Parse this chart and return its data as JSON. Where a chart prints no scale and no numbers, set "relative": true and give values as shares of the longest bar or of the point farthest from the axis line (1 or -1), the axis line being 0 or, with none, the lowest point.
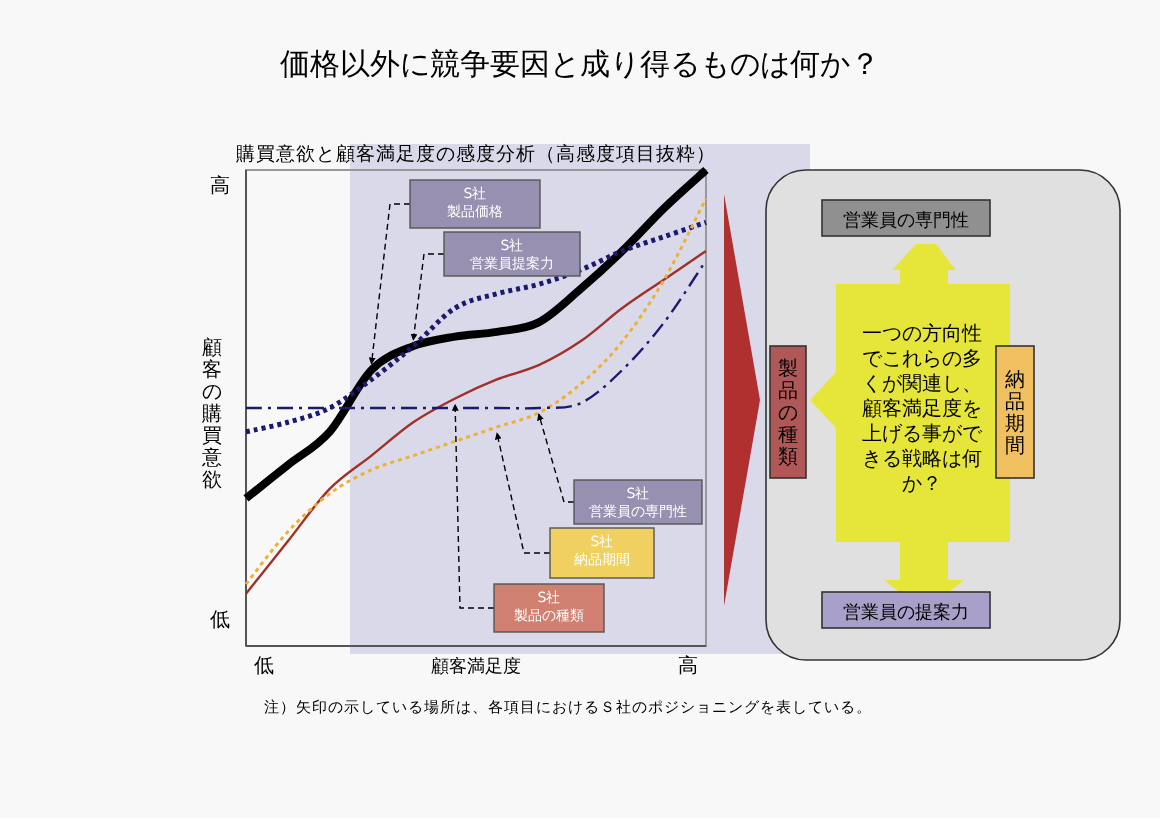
{
  "chart_data": [
    {
      "type": "line",
      "relative": true,
      "title": "価格以外に競争要因と成り得るものは何か？",
      "subtitle": "購買意欲と顧客満足度の感度分析（高感度項目抜粋）",
      "xlabel": "顧客満足度",
      "ylabel": "顧客の購買意欲",
      "categories": [
        null,
        null,
        null,
        null,
        null,
        null,
        null,
        null,
        null,
        null,
        null,
        null
      ],
      "series": [
        {
          "color": "#000000",
          "line_style": "solid",
          "values": [
            0.31,
            0.38,
            0.45,
            0.58,
            0.63,
            0.65,
            0.66,
            0.68,
            0.75,
            0.83,
            0.92,
            1
          ]
        },
        {
          "color": "#1a1a6e",
          "line_style": "dotted",
          "values": [
            0.45,
            0.47,
            0.5,
            0.56,
            0.63,
            0.71,
            0.74,
            0.76,
            0.79,
            0.83,
            0.86,
            0.89
          ]
        },
        {
          "color": "#a0302a",
          "line_style": "solid",
          "values": [
            0.11,
            0.22,
            0.33,
            0.4,
            0.47,
            0.52,
            0.56,
            0.59,
            0.64,
            0.71,
            0.77,
            0.83
          ]
        },
        {
          "color": "#f0b030",
          "line_style": "dotted",
          "values": [
            0.13,
            0.24,
            0.32,
            0.37,
            0.4,
            0.43,
            0.46,
            0.49,
            0.55,
            0.64,
            0.77,
            0.94
          ]
        },
        {
          "color": "#1a1a6e",
          "line_style": "dashdot",
          "values": [
            0.5,
            0.5,
            0.5,
            0.5,
            0.5,
            0.5,
            0.5,
            0.5,
            0.51,
            0.58,
            0.68,
            0.81
          ]
        }
      ],
      "annotations": [
        "高",
        "低",
        "低",
        "高",
        "S社製品価格",
        "S社営業員提案力",
        "S社営業員の専門性",
        "S社納品期間",
        "S社製品の種類",
        "注）矢印の示している場所は、各項目におけるＳ社のポジショニングを表している。"
      ]
    },
    {
      "type": "other",
      "annotations": [
        "営業員の専門性",
        "製品の種類",
        "一つの方向性でこれらの多くが関連し、顧客満足度を上げる事ができる戦略は何か？",
        "納品期間",
        "営業員の提案力"
      ]
    }
  ]
}
